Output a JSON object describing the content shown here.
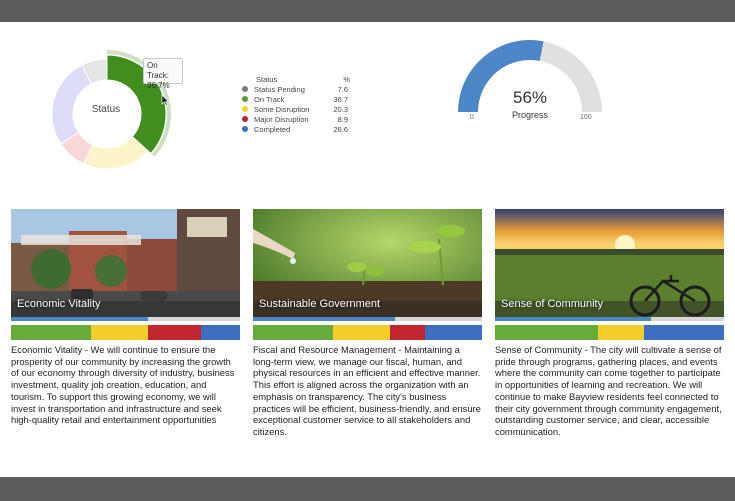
{
  "status_chart": {
    "center_label": "Status",
    "tooltip": {
      "label": "On Track:",
      "value": "36.7%"
    },
    "legend_header": {
      "name": "Status",
      "pct": "%"
    },
    "items": [
      {
        "name": "Status Pending",
        "value": 7.6,
        "display": "7.6",
        "color": "#7a7a7a",
        "fill": "#e5e5e5"
      },
      {
        "name": "On Track",
        "value": 36.7,
        "display": "36.7",
        "color": "#5a9a2a",
        "fill": "#3f8e1e"
      },
      {
        "name": "Some Disruption",
        "value": 20.3,
        "display": "20.3",
        "color": "#f2d12e",
        "fill": "#fbf4c8"
      },
      {
        "name": "Major Disruption",
        "value": 8.9,
        "display": "8.9",
        "color": "#c0272d",
        "fill": "#f8d7d7"
      },
      {
        "name": "Completed",
        "value": 26.6,
        "display": "26.6",
        "color": "#3c6fb5",
        "fill": "#dcdcf7"
      }
    ]
  },
  "progress_gauge": {
    "value": 56,
    "value_text": "56%",
    "label": "Progress",
    "min_label": "0",
    "max_label": "100",
    "fill_color": "#4d86c7",
    "track_color": "#e0e0e0"
  },
  "cards": [
    {
      "caption": "Economic Vitality",
      "progress": 0.6,
      "segments": [
        {
          "color": "#69ab3a",
          "share": 0.35
        },
        {
          "color": "#f3cd29",
          "share": 0.25
        },
        {
          "color": "#c0272d",
          "share": 0.23
        },
        {
          "color": "#3d6fc0",
          "share": 0.17
        }
      ],
      "text": "Economic Vitality - We will continue to ensure the prosperity of our community by increasing the growth of our economy through diversity of industry, business investment, quality job creation, education, and tourism. To support this growing economy, we will invest in transportation and infrastructure and seek high-quality retail and entertainment opportunities"
    },
    {
      "caption": "Sustainable Government",
      "progress": 0.62,
      "segments": [
        {
          "color": "#69ab3a",
          "share": 0.35
        },
        {
          "color": "#f3cd29",
          "share": 0.25
        },
        {
          "color": "#c0272d",
          "share": 0.15
        },
        {
          "color": "#3d6fc0",
          "share": 0.25
        }
      ],
      "text": "Fiscal and Resource Management - Maintaining a long-term view, we manage our fiscal, human, and physical resources in an efficient and effective manner. This effort is aligned across the organization with an emphasis on transparency. The city's business practices will be efficient, business-friendly, and ensure exceptional customer service to all stakeholders and citizens."
    },
    {
      "caption": "Sense of Community",
      "progress": 0.68,
      "segments": [
        {
          "color": "#69ab3a",
          "share": 0.45
        },
        {
          "color": "#f3cd29",
          "share": 0.2
        },
        {
          "color": "#3d6fc0",
          "share": 0.35
        }
      ],
      "text": "Sense of Community - The city will cultivate a sense of pride through programs, gathering places, and events where the community can come together to participate in opportunities of learning and recreation. We will continue to make Bayview residents feel connected to their city government through community engagement, outstanding customer service, and clear, accessible communication."
    }
  ]
}
